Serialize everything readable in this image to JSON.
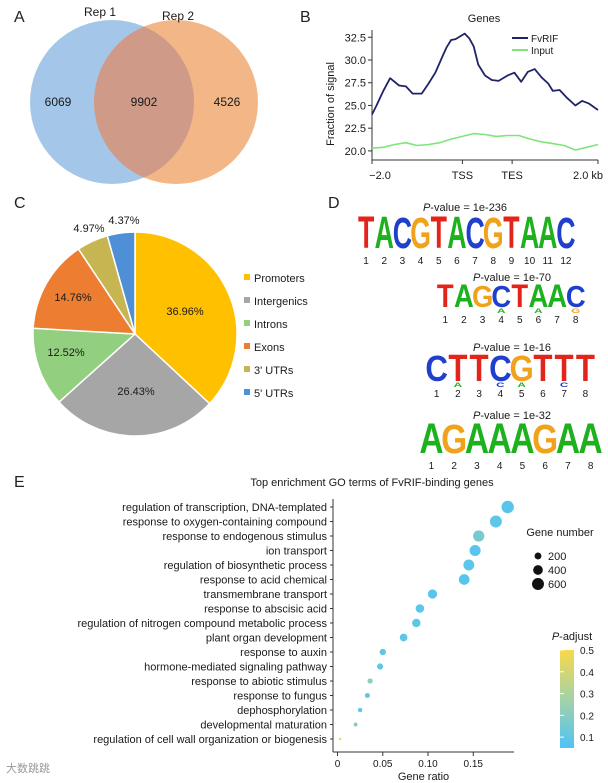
{
  "panels": {
    "a": "A",
    "b": "B",
    "c": "C",
    "d": "D",
    "e": "E"
  },
  "colors": {
    "rep1": "#9fc4e8",
    "rep2": "#f2b27f",
    "overlap": "#cf9a88",
    "fvrif": "#1f2466",
    "input": "#7fe57a",
    "promoters": "#ffc000",
    "intergenics": "#a6a6a6",
    "introns": "#92d07f",
    "exons": "#ed7d31",
    "utr3": "#c6b551",
    "utr5": "#4f8fd6",
    "dna_A": "#1db11d",
    "dna_C": "#1f3fcc",
    "dna_G": "#f0a31a",
    "dna_T": "#e3241b"
  },
  "chart_data": [
    {
      "type": "venn",
      "sets": [
        "Rep 1",
        "Rep 2"
      ],
      "values": {
        "only_rep1": 6069,
        "both": 9902,
        "only_rep2": 4526
      }
    },
    {
      "type": "line",
      "title": "Genes",
      "xlabel": "",
      "ylabel": "Fraction of signal",
      "x_ticks": [
        "−2.0",
        "TSS",
        "TES",
        "2.0 kb"
      ],
      "y_ticks": [
        "20.0",
        "22.5",
        "25.0",
        "27.5",
        "30.0",
        "32.5"
      ],
      "ylim": [
        19,
        33.3
      ],
      "legend": {
        "placement": "top-right",
        "entries": [
          "FvRIF",
          "Input"
        ]
      },
      "series": [
        {
          "name": "FvRIF",
          "x": [
            0,
            0.02,
            0.05,
            0.08,
            0.12,
            0.15,
            0.18,
            0.22,
            0.25,
            0.28,
            0.31,
            0.33,
            0.35,
            0.37,
            0.39,
            0.41,
            0.43,
            0.45,
            0.47,
            0.5,
            0.53,
            0.56,
            0.6,
            0.63,
            0.66,
            0.69,
            0.72,
            0.75,
            0.78,
            0.8,
            0.83,
            0.86,
            0.9,
            0.93,
            0.96,
            1.0
          ],
          "y": [
            24.0,
            25.0,
            26.6,
            28.0,
            27.2,
            27.1,
            26.3,
            26.3,
            27.4,
            28.6,
            30.3,
            31.4,
            32.2,
            32.3,
            32.6,
            32.9,
            32.4,
            31.5,
            29.5,
            28.3,
            27.8,
            27.7,
            28.3,
            28.6,
            27.6,
            28.7,
            29.0,
            28.1,
            27.4,
            26.6,
            26.7,
            25.9,
            25.0,
            25.5,
            25.2,
            24.5
          ]
        },
        {
          "name": "Input",
          "x": [
            0,
            0.05,
            0.1,
            0.15,
            0.2,
            0.25,
            0.3,
            0.35,
            0.4,
            0.45,
            0.5,
            0.55,
            0.6,
            0.65,
            0.7,
            0.75,
            0.8,
            0.85,
            0.9,
            0.95,
            1.0
          ],
          "y": [
            20.3,
            20.4,
            20.7,
            20.9,
            20.6,
            20.7,
            20.9,
            21.3,
            21.6,
            21.9,
            21.8,
            21.6,
            21.7,
            21.7,
            21.3,
            21.0,
            20.8,
            20.6,
            20.1,
            20.4,
            20.7
          ]
        }
      ]
    },
    {
      "type": "pie",
      "categories": [
        "Promoters",
        "Intergenics",
        "Introns",
        "Exons",
        "3' UTRs",
        "5' UTRs"
      ],
      "values": [
        36.96,
        26.43,
        12.52,
        14.76,
        4.97,
        4.37
      ],
      "labels": [
        "36.96%",
        "26.43%",
        "12.52%",
        "14.76%",
        "4.97%",
        "4.37%"
      ],
      "legend": {
        "placement": "right"
      }
    },
    {
      "type": "motif",
      "motifs": [
        {
          "pvalue_text": "= 1e-236",
          "sequence": "TACGTACGTAAC",
          "positions": [
            "1",
            "2",
            "3",
            "4",
            "5",
            "6",
            "7",
            "8",
            "9",
            "10",
            "11",
            "12"
          ]
        },
        {
          "pvalue_text": "= 1e-70",
          "sequence": "TAGCTAAC",
          "positions": [
            "1",
            "2",
            "3",
            "4",
            "5",
            "6",
            "7",
            "8"
          ]
        },
        {
          "pvalue_text": "= 1e-16",
          "sequence": "CTTCGTTT",
          "positions": [
            "1",
            "2",
            "3",
            "4",
            "5",
            "6",
            "7",
            "8"
          ]
        },
        {
          "pvalue_text": "= 1e-32",
          "sequence": "AGAAAGAA",
          "positions": [
            "1",
            "2",
            "3",
            "4",
            "5",
            "6",
            "7",
            "8"
          ]
        }
      ],
      "pvalue_prefix": "P",
      "pvalue_word": "-value "
    },
    {
      "type": "scatter",
      "title": "Top enrichment GO terms of FvRIF-binding genes",
      "xlabel": "Gene ratio",
      "xlim": [
        -0.005,
        0.195
      ],
      "x_ticks": [
        0,
        0.05,
        0.1,
        0.15
      ],
      "x_tick_labels": [
        "0",
        "0.05",
        "0.10",
        "0.15"
      ],
      "size_legend": {
        "title": "Gene number",
        "values": [
          200,
          400,
          600
        ],
        "labels": [
          "200",
          "400",
          "600"
        ]
      },
      "color_legend": {
        "title_prefix": "P",
        "title_suffix": "-adjust",
        "ticks": [
          "0.5",
          "0.4",
          "0.3",
          "0.2",
          "0.1"
        ],
        "range": [
          0.05,
          0.5
        ]
      },
      "terms": [
        {
          "term": "regulation of transcription, DNA-templated",
          "ratio": 0.188,
          "count": 650,
          "padj": 0.08
        },
        {
          "term": "response to oxygen-containing compound",
          "ratio": 0.175,
          "count": 600,
          "padj": 0.09
        },
        {
          "term": "response to endogenous stimulus",
          "ratio": 0.156,
          "count": 540,
          "padj": 0.16
        },
        {
          "term": "ion transport",
          "ratio": 0.152,
          "count": 520,
          "padj": 0.08
        },
        {
          "term": "regulation of biosynthetic process",
          "ratio": 0.145,
          "count": 500,
          "padj": 0.09
        },
        {
          "term": "response to acid chemical",
          "ratio": 0.14,
          "count": 480,
          "padj": 0.08
        },
        {
          "term": "transmembrane transport",
          "ratio": 0.105,
          "count": 360,
          "padj": 0.08
        },
        {
          "term": "response to abscisic acid",
          "ratio": 0.091,
          "count": 310,
          "padj": 0.09
        },
        {
          "term": "regulation of nitrogen compound metabolic process",
          "ratio": 0.087,
          "count": 300,
          "padj": 0.09
        },
        {
          "term": "plant organ development",
          "ratio": 0.073,
          "count": 250,
          "padj": 0.09
        },
        {
          "term": "response to auxin",
          "ratio": 0.05,
          "count": 170,
          "padj": 0.1
        },
        {
          "term": "hormone-mediated signaling pathway",
          "ratio": 0.047,
          "count": 160,
          "padj": 0.1
        },
        {
          "term": "response to abiotic stimulus",
          "ratio": 0.036,
          "count": 120,
          "padj": 0.22
        },
        {
          "term": "response to fungus",
          "ratio": 0.033,
          "count": 110,
          "padj": 0.1
        },
        {
          "term": "dephosphorylation",
          "ratio": 0.025,
          "count": 85,
          "padj": 0.11
        },
        {
          "term": "developmental maturation",
          "ratio": 0.02,
          "count": 65,
          "padj": 0.2
        },
        {
          "term": "regulation of cell wall organization or biogenesis",
          "ratio": 0.003,
          "count": 15,
          "padj": 0.45
        }
      ]
    }
  ],
  "watermark": "大数跳跳"
}
